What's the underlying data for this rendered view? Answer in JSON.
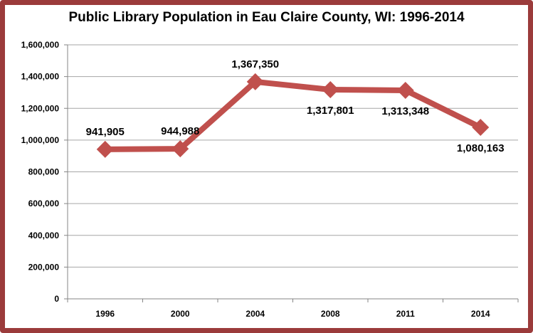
{
  "chart_data": {
    "type": "line",
    "title": "Public Library Population in Eau Claire County, WI: 1996-2014",
    "categories": [
      "1996",
      "2000",
      "2004",
      "2008",
      "2011",
      "2014"
    ],
    "series": [
      {
        "values": [
          941905,
          944988,
          1367350,
          1317801,
          1313348,
          1080163
        ]
      }
    ],
    "data_labels": [
      "941,905",
      "944,988",
      "1,367,350",
      "1,317,801",
      "1,313,348",
      "1,080,163"
    ],
    "y_tick_labels": [
      "0",
      "200,000",
      "400,000",
      "600,000",
      "800,000",
      "1,000,000",
      "1,200,000",
      "1,400,000",
      "1,600,000"
    ],
    "ylim": [
      0,
      1600000
    ],
    "grid": true,
    "legend": "none",
    "colors": {
      "line": "#c0504d",
      "frame": "#9b3b3b",
      "grid": "#a6a6a6"
    }
  }
}
